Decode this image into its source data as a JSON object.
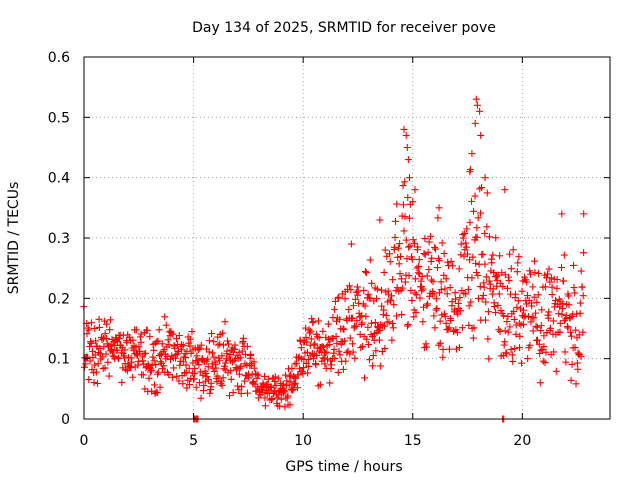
{
  "chart_data": {
    "type": "scatter",
    "title": "Day 134 of 2025, SRMTID for receiver pove",
    "xlabel": "GPS time / hours",
    "ylabel": "SRMTID / TECUs",
    "xlim": [
      0,
      24
    ],
    "ylim": [
      0,
      0.6
    ],
    "xticks": [
      0,
      5,
      10,
      15,
      20
    ],
    "xtick_labels": [
      "0",
      "5",
      "10",
      "15",
      "20"
    ],
    "yticks": [
      0,
      0.1,
      0.2,
      0.3,
      0.4,
      0.5,
      0.6
    ],
    "ytick_labels": [
      "0",
      "0.1",
      "0.2",
      "0.3",
      "0.4",
      "0.5",
      "0.6"
    ],
    "grid": true,
    "marker": "+",
    "color": "#ff0000",
    "series": [
      {
        "name": "SRMTID",
        "trend": {
          "x": [
            0.0,
            0.5,
            1.0,
            1.5,
            2.0,
            2.5,
            3.0,
            3.5,
            4.0,
            4.5,
            5.0,
            5.5,
            6.0,
            6.5,
            7.0,
            7.5,
            8.0,
            8.5,
            9.0,
            9.5,
            10.0,
            10.5,
            11.0,
            11.5,
            12.0,
            12.5,
            13.0,
            13.5,
            14.0,
            14.5,
            15.0,
            15.5,
            16.0,
            16.5,
            17.0,
            17.5,
            18.0,
            18.5,
            19.0,
            19.5,
            20.0,
            20.5,
            21.0,
            21.5,
            22.0,
            22.5,
            22.8
          ],
          "y": [
            0.1,
            0.12,
            0.12,
            0.11,
            0.1,
            0.11,
            0.09,
            0.1,
            0.12,
            0.09,
            0.1,
            0.09,
            0.09,
            0.1,
            0.09,
            0.08,
            0.06,
            0.05,
            0.04,
            0.06,
            0.12,
            0.11,
            0.1,
            0.13,
            0.16,
            0.15,
            0.17,
            0.18,
            0.2,
            0.24,
            0.25,
            0.22,
            0.21,
            0.22,
            0.19,
            0.24,
            0.28,
            0.24,
            0.2,
            0.18,
            0.19,
            0.17,
            0.16,
            0.18,
            0.17,
            0.15,
            0.2
          ],
          "spread": [
            0.04,
            0.05,
            0.04,
            0.04,
            0.04,
            0.04,
            0.05,
            0.06,
            0.04,
            0.05,
            0.05,
            0.05,
            0.04,
            0.05,
            0.05,
            0.04,
            0.03,
            0.03,
            0.02,
            0.03,
            0.04,
            0.05,
            0.05,
            0.06,
            0.08,
            0.07,
            0.08,
            0.08,
            0.09,
            0.13,
            0.1,
            0.09,
            0.09,
            0.09,
            0.08,
            0.12,
            0.14,
            0.11,
            0.08,
            0.08,
            0.08,
            0.09,
            0.09,
            0.09,
            0.08,
            0.08,
            0.08
          ]
        },
        "peaks": [
          {
            "x": 14.6,
            "y": 0.48
          },
          {
            "x": 14.7,
            "y": 0.47
          },
          {
            "x": 14.75,
            "y": 0.45
          },
          {
            "x": 14.8,
            "y": 0.43
          },
          {
            "x": 14.85,
            "y": 0.4
          },
          {
            "x": 15.1,
            "y": 0.38
          },
          {
            "x": 17.9,
            "y": 0.53
          },
          {
            "x": 17.95,
            "y": 0.52
          },
          {
            "x": 18.05,
            "y": 0.51
          },
          {
            "x": 17.85,
            "y": 0.49
          },
          {
            "x": 18.1,
            "y": 0.47
          },
          {
            "x": 17.7,
            "y": 0.44
          },
          {
            "x": 18.3,
            "y": 0.4
          },
          {
            "x": 17.6,
            "y": 0.41
          },
          {
            "x": 19.2,
            "y": 0.38
          },
          {
            "x": 16.2,
            "y": 0.35
          },
          {
            "x": 21.8,
            "y": 0.34
          },
          {
            "x": 22.8,
            "y": 0.34
          },
          {
            "x": 13.5,
            "y": 0.33
          },
          {
            "x": 12.2,
            "y": 0.29
          }
        ],
        "zero_points": [
          {
            "x": 5.0,
            "y": 0.0
          },
          {
            "x": 5.05,
            "y": 0.0
          },
          {
            "x": 5.1,
            "y": 0.0
          },
          {
            "x": 5.15,
            "y": 0.0
          },
          {
            "x": 5.2,
            "y": 0.0
          },
          {
            "x": 19.1,
            "y": 0.0
          },
          {
            "x": 19.15,
            "y": 0.0
          }
        ]
      }
    ]
  }
}
